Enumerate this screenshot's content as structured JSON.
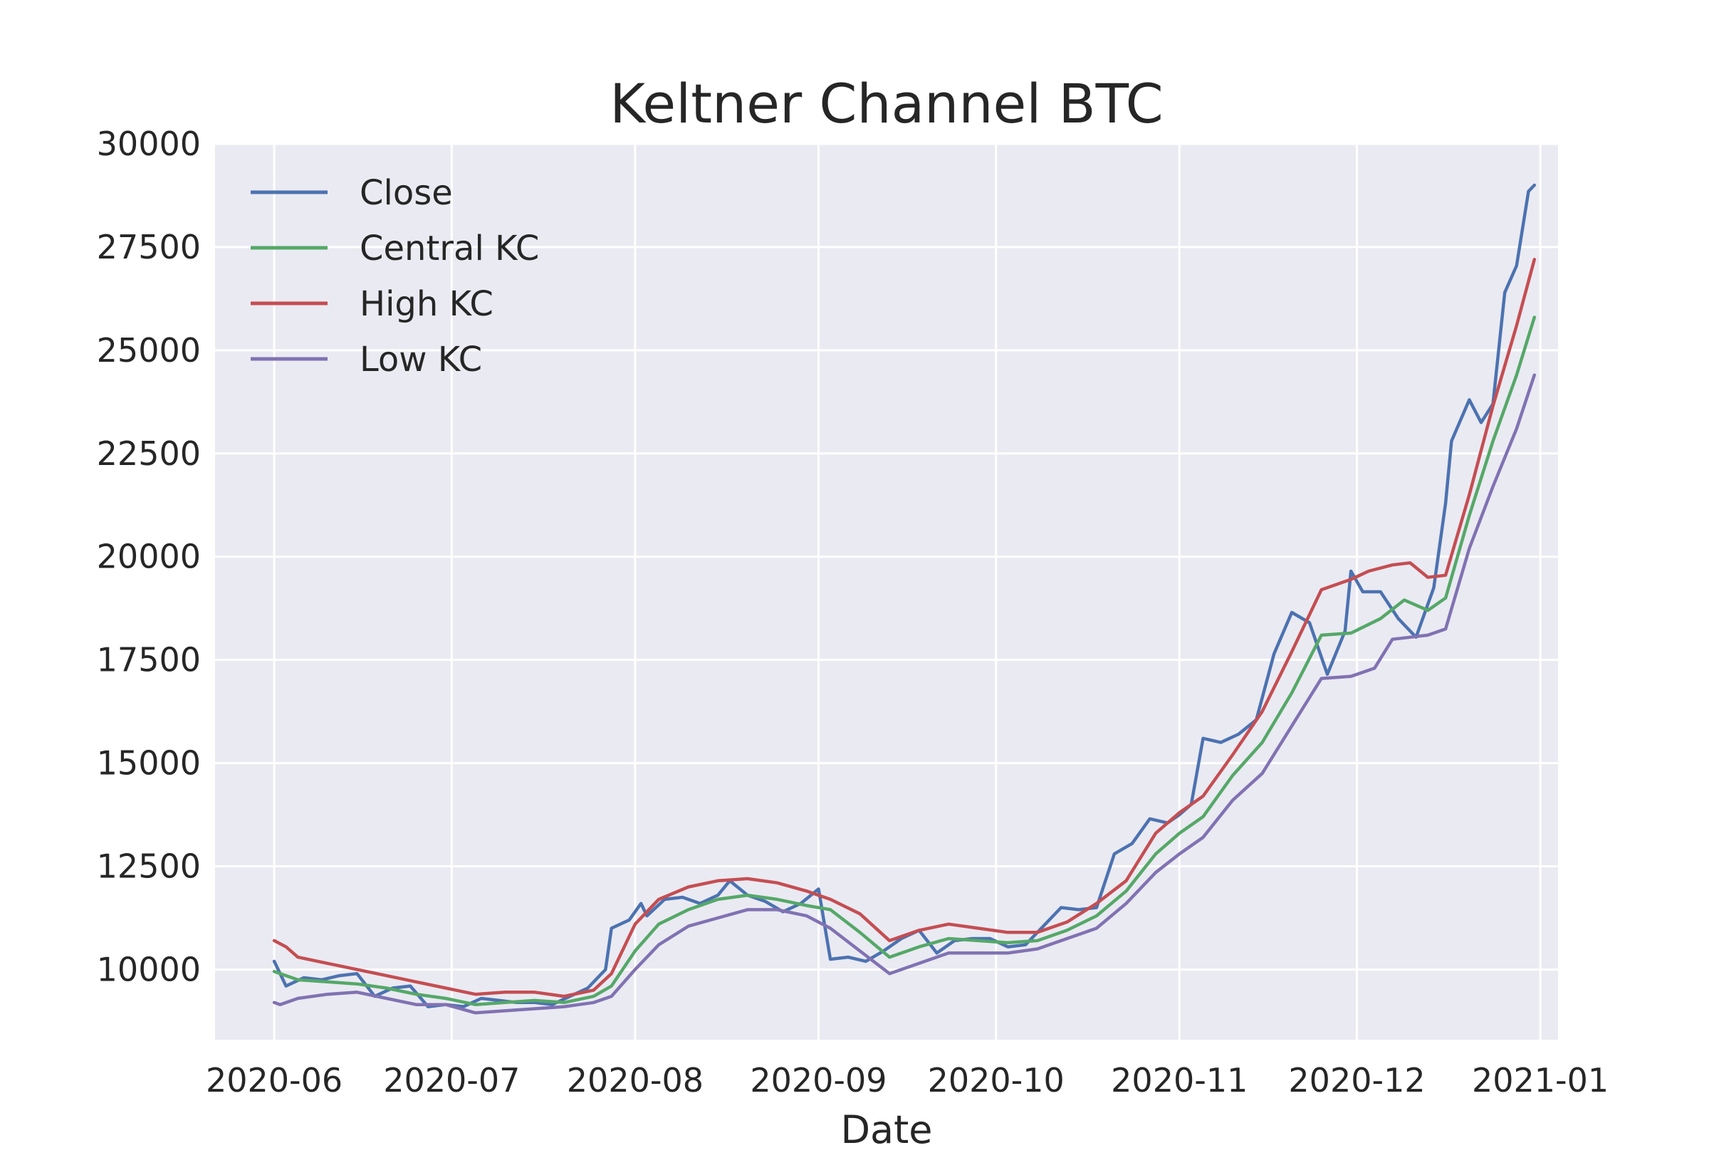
{
  "chart_data": {
    "type": "line",
    "title": "Keltner Channel BTC",
    "xlabel": "Date",
    "ylabel": "",
    "xlim": [
      "2020-05-22",
      "2021-01-04"
    ],
    "ylim": [
      8300,
      30000
    ],
    "x_ticks": [
      "2020-06",
      "2020-07",
      "2020-08",
      "2020-09",
      "2020-10",
      "2020-11",
      "2020-12",
      "2021-01"
    ],
    "y_ticks": [
      10000,
      12500,
      15000,
      17500,
      20000,
      22500,
      25000,
      27500,
      30000
    ],
    "grid": true,
    "legend_position": "top-left",
    "series": [
      {
        "name": "Close",
        "color": "#4c72b0",
        "points": [
          [
            "2020-06-01",
            10200
          ],
          [
            "2020-06-03",
            9600
          ],
          [
            "2020-06-06",
            9800
          ],
          [
            "2020-06-09",
            9750
          ],
          [
            "2020-06-12",
            9850
          ],
          [
            "2020-06-15",
            9900
          ],
          [
            "2020-06-18",
            9350
          ],
          [
            "2020-06-21",
            9550
          ],
          [
            "2020-06-24",
            9600
          ],
          [
            "2020-06-27",
            9100
          ],
          [
            "2020-06-30",
            9150
          ],
          [
            "2020-07-03",
            9100
          ],
          [
            "2020-07-06",
            9300
          ],
          [
            "2020-07-09",
            9250
          ],
          [
            "2020-07-12",
            9200
          ],
          [
            "2020-07-15",
            9200
          ],
          [
            "2020-07-18",
            9150
          ],
          [
            "2020-07-21",
            9350
          ],
          [
            "2020-07-24",
            9550
          ],
          [
            "2020-07-27",
            10000
          ],
          [
            "2020-07-28",
            11000
          ],
          [
            "2020-07-31",
            11200
          ],
          [
            "2020-08-02",
            11600
          ],
          [
            "2020-08-03",
            11300
          ],
          [
            "2020-08-06",
            11700
          ],
          [
            "2020-08-09",
            11750
          ],
          [
            "2020-08-12",
            11600
          ],
          [
            "2020-08-15",
            11800
          ],
          [
            "2020-08-17",
            12150
          ],
          [
            "2020-08-20",
            11800
          ],
          [
            "2020-08-23",
            11650
          ],
          [
            "2020-08-26",
            11400
          ],
          [
            "2020-08-29",
            11600
          ],
          [
            "2020-09-01",
            11950
          ],
          [
            "2020-09-03",
            10250
          ],
          [
            "2020-09-06",
            10300
          ],
          [
            "2020-09-09",
            10200
          ],
          [
            "2020-09-12",
            10450
          ],
          [
            "2020-09-15",
            10750
          ],
          [
            "2020-09-18",
            10950
          ],
          [
            "2020-09-21",
            10400
          ],
          [
            "2020-09-24",
            10700
          ],
          [
            "2020-09-27",
            10750
          ],
          [
            "2020-09-30",
            10750
          ],
          [
            "2020-10-03",
            10550
          ],
          [
            "2020-10-06",
            10600
          ],
          [
            "2020-10-09",
            11050
          ],
          [
            "2020-10-12",
            11500
          ],
          [
            "2020-10-15",
            11450
          ],
          [
            "2020-10-18",
            11500
          ],
          [
            "2020-10-21",
            12800
          ],
          [
            "2020-10-24",
            13050
          ],
          [
            "2020-10-27",
            13650
          ],
          [
            "2020-10-30",
            13550
          ],
          [
            "2020-11-01",
            13750
          ],
          [
            "2020-11-03",
            14000
          ],
          [
            "2020-11-05",
            15600
          ],
          [
            "2020-11-08",
            15500
          ],
          [
            "2020-11-11",
            15700
          ],
          [
            "2020-11-14",
            16050
          ],
          [
            "2020-11-17",
            17650
          ],
          [
            "2020-11-20",
            18650
          ],
          [
            "2020-11-23",
            18400
          ],
          [
            "2020-11-26",
            17150
          ],
          [
            "2020-11-29",
            18200
          ],
          [
            "2020-11-30",
            19650
          ],
          [
            "2020-12-02",
            19150
          ],
          [
            "2020-12-05",
            19150
          ],
          [
            "2020-12-08",
            18500
          ],
          [
            "2020-12-11",
            18050
          ],
          [
            "2020-12-14",
            19250
          ],
          [
            "2020-12-16",
            21300
          ],
          [
            "2020-12-17",
            22800
          ],
          [
            "2020-12-20",
            23800
          ],
          [
            "2020-12-22",
            23250
          ],
          [
            "2020-12-24",
            23700
          ],
          [
            "2020-12-26",
            26400
          ],
          [
            "2020-12-28",
            27050
          ],
          [
            "2020-12-30",
            28850
          ],
          [
            "2020-12-31",
            29000
          ]
        ]
      },
      {
        "name": "Central KC",
        "color": "#55a868",
        "points": [
          [
            "2020-06-01",
            9950
          ],
          [
            "2020-06-05",
            9750
          ],
          [
            "2020-06-10",
            9700
          ],
          [
            "2020-06-15",
            9650
          ],
          [
            "2020-06-20",
            9550
          ],
          [
            "2020-06-25",
            9400
          ],
          [
            "2020-06-30",
            9300
          ],
          [
            "2020-07-05",
            9150
          ],
          [
            "2020-07-10",
            9200
          ],
          [
            "2020-07-15",
            9250
          ],
          [
            "2020-07-20",
            9200
          ],
          [
            "2020-07-25",
            9350
          ],
          [
            "2020-07-28",
            9600
          ],
          [
            "2020-08-01",
            10450
          ],
          [
            "2020-08-05",
            11100
          ],
          [
            "2020-08-10",
            11450
          ],
          [
            "2020-08-15",
            11700
          ],
          [
            "2020-08-20",
            11800
          ],
          [
            "2020-08-25",
            11700
          ],
          [
            "2020-08-30",
            11550
          ],
          [
            "2020-09-03",
            11450
          ],
          [
            "2020-09-08",
            10900
          ],
          [
            "2020-09-13",
            10300
          ],
          [
            "2020-09-18",
            10550
          ],
          [
            "2020-09-23",
            10750
          ],
          [
            "2020-09-28",
            10700
          ],
          [
            "2020-10-03",
            10650
          ],
          [
            "2020-10-08",
            10700
          ],
          [
            "2020-10-13",
            10950
          ],
          [
            "2020-10-18",
            11300
          ],
          [
            "2020-10-23",
            11900
          ],
          [
            "2020-10-28",
            12800
          ],
          [
            "2020-11-01",
            13300
          ],
          [
            "2020-11-05",
            13700
          ],
          [
            "2020-11-10",
            14700
          ],
          [
            "2020-11-15",
            15500
          ],
          [
            "2020-11-20",
            16700
          ],
          [
            "2020-11-25",
            18100
          ],
          [
            "2020-11-30",
            18150
          ],
          [
            "2020-12-05",
            18500
          ],
          [
            "2020-12-09",
            18950
          ],
          [
            "2020-12-13",
            18700
          ],
          [
            "2020-12-16",
            19000
          ],
          [
            "2020-12-20",
            21000
          ],
          [
            "2020-12-24",
            22800
          ],
          [
            "2020-12-28",
            24400
          ],
          [
            "2020-12-31",
            25800
          ]
        ]
      },
      {
        "name": "High KC",
        "color": "#c44e52",
        "points": [
          [
            "2020-06-01",
            10700
          ],
          [
            "2020-06-03",
            10550
          ],
          [
            "2020-06-05",
            10300
          ],
          [
            "2020-06-10",
            10150
          ],
          [
            "2020-06-15",
            10000
          ],
          [
            "2020-06-20",
            9850
          ],
          [
            "2020-06-25",
            9700
          ],
          [
            "2020-06-30",
            9550
          ],
          [
            "2020-07-05",
            9400
          ],
          [
            "2020-07-10",
            9450
          ],
          [
            "2020-07-15",
            9450
          ],
          [
            "2020-07-20",
            9350
          ],
          [
            "2020-07-25",
            9500
          ],
          [
            "2020-07-28",
            9900
          ],
          [
            "2020-08-01",
            11100
          ],
          [
            "2020-08-05",
            11700
          ],
          [
            "2020-08-10",
            12000
          ],
          [
            "2020-08-15",
            12150
          ],
          [
            "2020-08-20",
            12200
          ],
          [
            "2020-08-25",
            12100
          ],
          [
            "2020-08-30",
            11900
          ],
          [
            "2020-09-03",
            11700
          ],
          [
            "2020-09-08",
            11350
          ],
          [
            "2020-09-13",
            10700
          ],
          [
            "2020-09-18",
            10950
          ],
          [
            "2020-09-23",
            11100
          ],
          [
            "2020-09-28",
            11000
          ],
          [
            "2020-10-03",
            10900
          ],
          [
            "2020-10-08",
            10900
          ],
          [
            "2020-10-13",
            11150
          ],
          [
            "2020-10-18",
            11600
          ],
          [
            "2020-10-23",
            12150
          ],
          [
            "2020-10-28",
            13300
          ],
          [
            "2020-11-01",
            13800
          ],
          [
            "2020-11-05",
            14200
          ],
          [
            "2020-11-10",
            15200
          ],
          [
            "2020-11-15",
            16250
          ],
          [
            "2020-11-20",
            17700
          ],
          [
            "2020-11-25",
            19200
          ],
          [
            "2020-11-30",
            19450
          ],
          [
            "2020-12-03",
            19650
          ],
          [
            "2020-12-07",
            19800
          ],
          [
            "2020-12-10",
            19850
          ],
          [
            "2020-12-13",
            19500
          ],
          [
            "2020-12-16",
            19550
          ],
          [
            "2020-12-20",
            21500
          ],
          [
            "2020-12-24",
            23650
          ],
          [
            "2020-12-28",
            25600
          ],
          [
            "2020-12-31",
            27200
          ]
        ]
      },
      {
        "name": "Low KC",
        "color": "#8172b2",
        "points": [
          [
            "2020-06-01",
            9200
          ],
          [
            "2020-06-02",
            9150
          ],
          [
            "2020-06-05",
            9300
          ],
          [
            "2020-06-10",
            9400
          ],
          [
            "2020-06-15",
            9450
          ],
          [
            "2020-06-20",
            9300
          ],
          [
            "2020-06-25",
            9150
          ],
          [
            "2020-06-30",
            9150
          ],
          [
            "2020-07-05",
            8950
          ],
          [
            "2020-07-10",
            9000
          ],
          [
            "2020-07-15",
            9050
          ],
          [
            "2020-07-20",
            9100
          ],
          [
            "2020-07-25",
            9200
          ],
          [
            "2020-07-28",
            9350
          ],
          [
            "2020-08-01",
            10000
          ],
          [
            "2020-08-05",
            10600
          ],
          [
            "2020-08-10",
            11050
          ],
          [
            "2020-08-15",
            11250
          ],
          [
            "2020-08-20",
            11450
          ],
          [
            "2020-08-25",
            11450
          ],
          [
            "2020-08-30",
            11300
          ],
          [
            "2020-09-03",
            11000
          ],
          [
            "2020-09-08",
            10450
          ],
          [
            "2020-09-13",
            9900
          ],
          [
            "2020-09-18",
            10150
          ],
          [
            "2020-09-23",
            10400
          ],
          [
            "2020-09-28",
            10400
          ],
          [
            "2020-10-03",
            10400
          ],
          [
            "2020-10-08",
            10500
          ],
          [
            "2020-10-13",
            10750
          ],
          [
            "2020-10-18",
            11000
          ],
          [
            "2020-10-23",
            11600
          ],
          [
            "2020-10-28",
            12350
          ],
          [
            "2020-11-01",
            12800
          ],
          [
            "2020-11-05",
            13200
          ],
          [
            "2020-11-10",
            14100
          ],
          [
            "2020-11-15",
            14750
          ],
          [
            "2020-11-20",
            15900
          ],
          [
            "2020-11-25",
            17050
          ],
          [
            "2020-11-30",
            17100
          ],
          [
            "2020-12-04",
            17300
          ],
          [
            "2020-12-07",
            18000
          ],
          [
            "2020-12-10",
            18050
          ],
          [
            "2020-12-13",
            18100
          ],
          [
            "2020-12-16",
            18250
          ],
          [
            "2020-12-20",
            20200
          ],
          [
            "2020-12-24",
            21700
          ],
          [
            "2020-12-28",
            23100
          ],
          [
            "2020-12-31",
            24400
          ]
        ]
      }
    ]
  }
}
